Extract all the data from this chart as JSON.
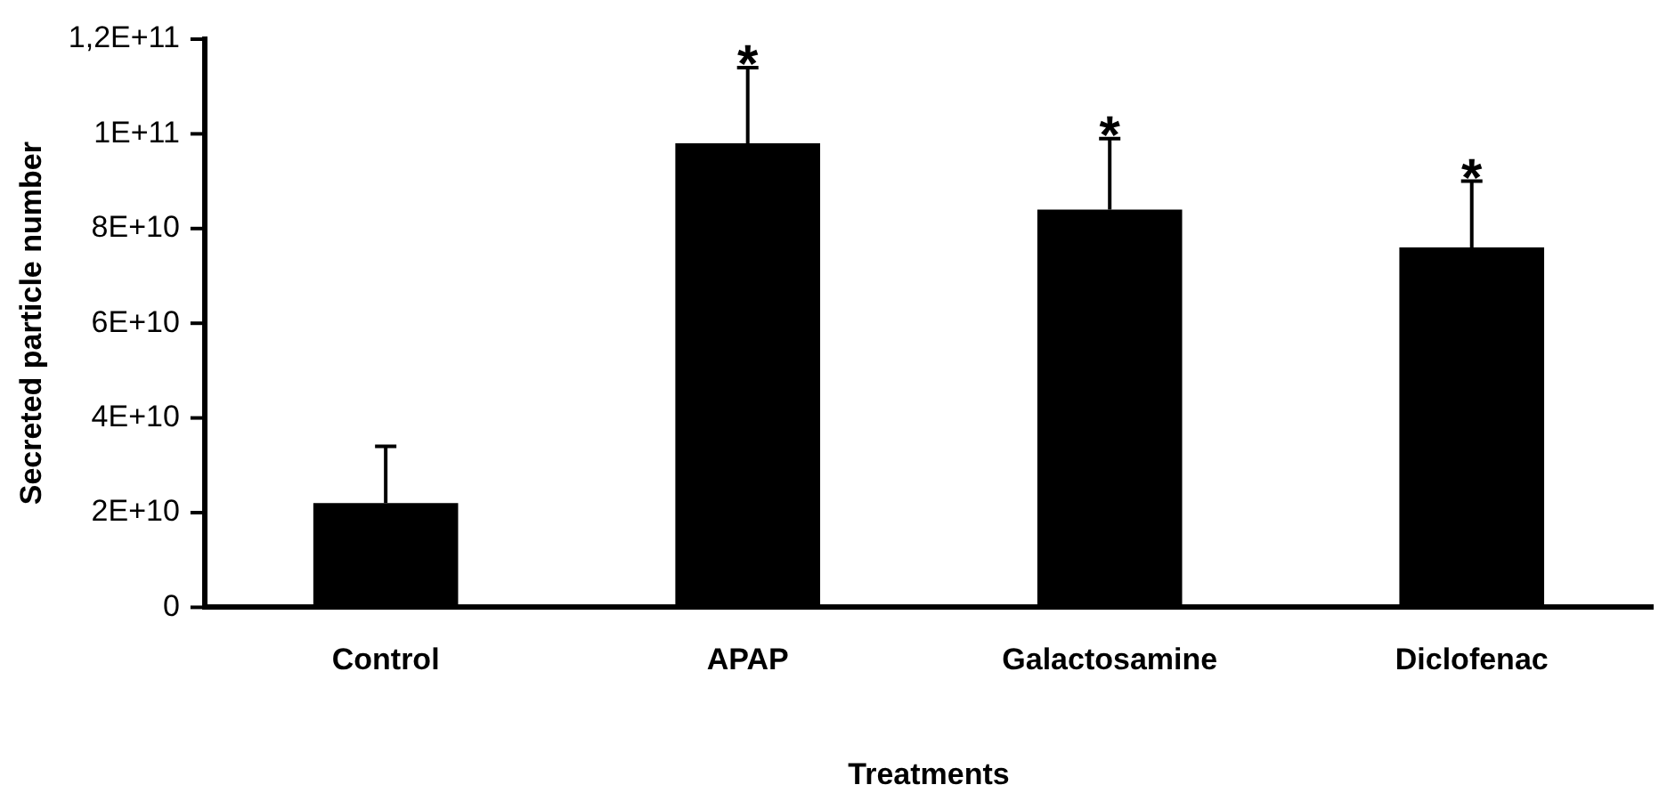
{
  "chart_data": {
    "type": "bar",
    "xlabel": "Treatments",
    "ylabel": "Secreted particle number",
    "categories": [
      "Control",
      "APAP",
      "Galactosamine",
      "Diclofenac"
    ],
    "values": [
      22000000000.0,
      98000000000.0,
      84000000000.0,
      76000000000.0
    ],
    "errors": [
      [
        22000000000.0,
        34000000000.0
      ],
      [
        98000000000.0,
        114000000000.0
      ],
      [
        84000000000.0,
        99000000000.0
      ],
      [
        76000000000.0,
        90000000000.0
      ]
    ],
    "color": "#000000",
    "ylim": [
      0,
      120000000000.0
    ],
    "yticks": [
      0,
      {
        "value": 20000000000.0,
        "label": "2E+10"
      },
      {
        "value": 40000000000.0,
        "label": "4E+10"
      },
      {
        "value": 60000000000.0,
        "label": "6E+10"
      },
      {
        "value": 80000000000.0,
        "label": "8E+10"
      },
      {
        "value": 100000000000.0,
        "label": "1E+11"
      },
      {
        "value": 120000000000.0,
        "label": "1,2E+11"
      }
    ],
    "annotations": [
      {
        "text": "*",
        "x": "APAP",
        "y": 114000000000.0
      },
      {
        "text": "*",
        "x": "Galactosamine",
        "y": 99000000000.0
      },
      {
        "text": "*",
        "x": "Diclofenac",
        "y": 90000000000.0
      }
    ],
    "grid": false,
    "legend": false
  }
}
